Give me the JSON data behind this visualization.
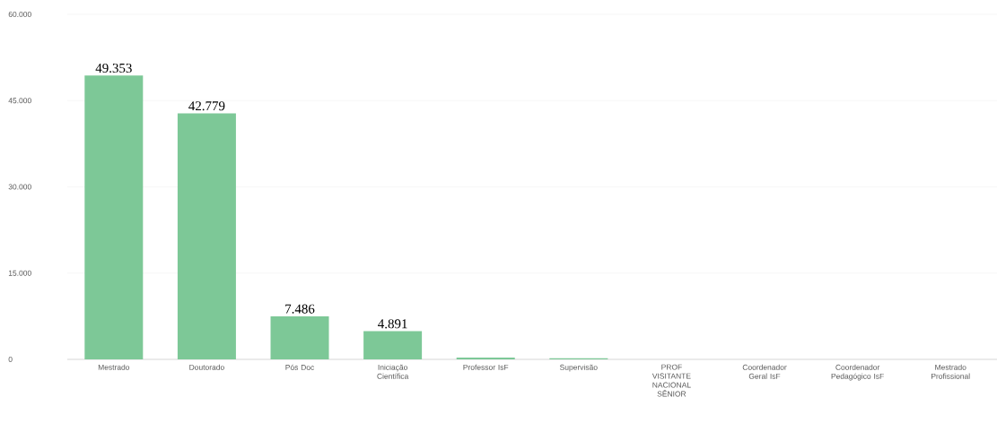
{
  "chart_data": {
    "type": "bar",
    "categories": [
      "Mestrado",
      "Doutorado",
      "Pós Doc",
      "Iniciação Científica",
      "Professor IsF",
      "Supervisão",
      "PROF VISITANTE NACIONAL SÊNIOR",
      "Coordenador Geral IsF",
      "Coordenador Pedagógico IsF",
      "Mestrado Profissional"
    ],
    "values": [
      49353,
      42779,
      7486,
      4891,
      300,
      200,
      null,
      0,
      0,
      0
    ],
    "value_labels": [
      "49.353",
      "42.779",
      "7.486",
      "4.891",
      null,
      null,
      null,
      null,
      null,
      null
    ],
    "color": "#7dc897",
    "ylim": [
      0,
      60000
    ],
    "yticks": [
      {
        "value": 0,
        "label": "0"
      },
      {
        "value": 15000,
        "label": "15.000"
      },
      {
        "value": 30000,
        "label": "30.000"
      },
      {
        "value": 45000,
        "label": "45.000"
      },
      {
        "value": 60000,
        "label": "60.000"
      }
    ],
    "grid": "y"
  }
}
